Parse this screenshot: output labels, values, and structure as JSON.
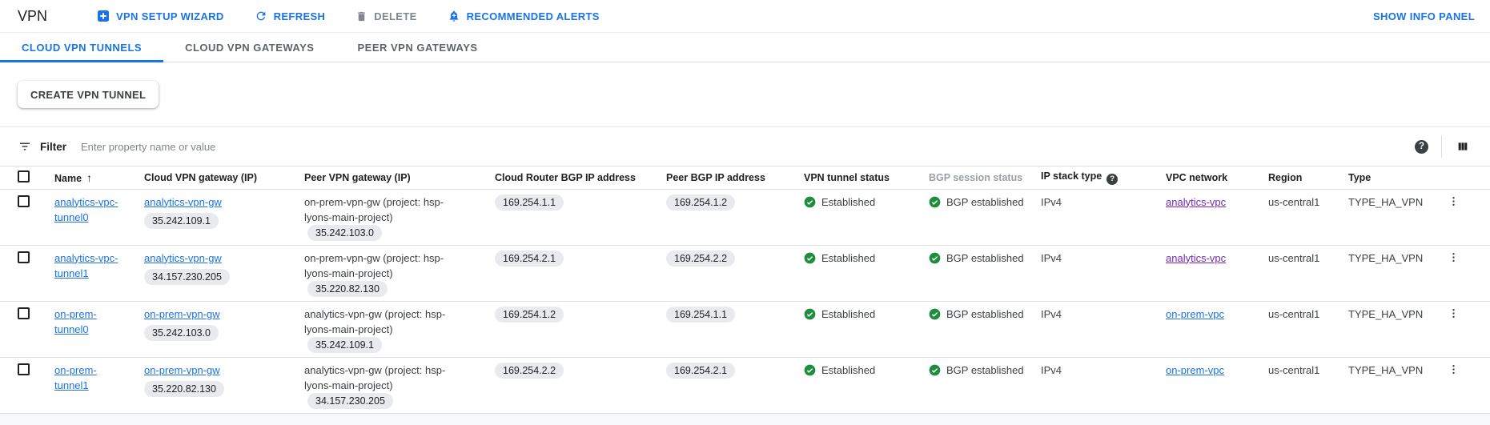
{
  "header": {
    "title": "VPN",
    "actions": [
      {
        "id": "vpn-setup-wizard",
        "label": "VPN SETUP WIZARD"
      },
      {
        "id": "refresh",
        "label": "REFRESH"
      },
      {
        "id": "delete",
        "label": "DELETE",
        "disabled": true
      },
      {
        "id": "recommended-alerts",
        "label": "RECOMMENDED ALERTS"
      }
    ],
    "show_info_panel": "SHOW INFO PANEL"
  },
  "tabs": [
    {
      "label": "CLOUD VPN TUNNELS",
      "active": true
    },
    {
      "label": "CLOUD VPN GATEWAYS",
      "active": false
    },
    {
      "label": "PEER VPN GATEWAYS",
      "active": false
    }
  ],
  "create_button": "CREATE VPN TUNNEL",
  "filter": {
    "label": "Filter",
    "placeholder": "Enter property name or value"
  },
  "colors": {
    "accent_blue": "#1a73e8",
    "visited_purple": "#7627bb",
    "status_green": "#1e8e3e",
    "chip_gray": "#e8eaed"
  },
  "table": {
    "columns": [
      {
        "id": "name",
        "label": "Name",
        "sort": "asc"
      },
      {
        "id": "cloud_gw",
        "label": "Cloud VPN gateway (IP)"
      },
      {
        "id": "peer_gw",
        "label": "Peer VPN gateway (IP)"
      },
      {
        "id": "router_bgp_ip",
        "label": "Cloud Router BGP IP address"
      },
      {
        "id": "peer_bgp_ip",
        "label": "Peer BGP IP address"
      },
      {
        "id": "tunnel_status",
        "label": "VPN tunnel status"
      },
      {
        "id": "bgp_status",
        "label": "BGP session status",
        "muted": true
      },
      {
        "id": "ip_stack",
        "label": "IP stack type",
        "help": true
      },
      {
        "id": "vpc",
        "label": "VPC network"
      },
      {
        "id": "region",
        "label": "Region"
      },
      {
        "id": "type",
        "label": "Type"
      }
    ],
    "rows": [
      {
        "name": "analytics-vpc-tunnel0",
        "cloud_gw": "analytics-vpn-gw",
        "cloud_gw_ip": "35.242.109.1",
        "peer_gw": "on-prem-vpn-gw (project: hsp-lyons-main-project)",
        "peer_gw_ip": "35.242.103.0",
        "router_bgp_ip": "169.254.1.1",
        "peer_bgp_ip": "169.254.1.2",
        "tunnel_status": "Established",
        "bgp_status": "BGP established",
        "ip_stack": "IPv4",
        "vpc": "analytics-vpc",
        "vpc_visited": true,
        "region": "us-central1",
        "type": "TYPE_HA_VPN"
      },
      {
        "name": "analytics-vpc-tunnel1",
        "cloud_gw": "analytics-vpn-gw",
        "cloud_gw_ip": "34.157.230.205",
        "peer_gw": "on-prem-vpn-gw (project: hsp-lyons-main-project)",
        "peer_gw_ip": "35.220.82.130",
        "router_bgp_ip": "169.254.2.1",
        "peer_bgp_ip": "169.254.2.2",
        "tunnel_status": "Established",
        "bgp_status": "BGP established",
        "ip_stack": "IPv4",
        "vpc": "analytics-vpc",
        "vpc_visited": true,
        "region": "us-central1",
        "type": "TYPE_HA_VPN"
      },
      {
        "name": "on-prem-tunnel0",
        "cloud_gw": "on-prem-vpn-gw",
        "cloud_gw_ip": "35.242.103.0",
        "peer_gw": "analytics-vpn-gw (project: hsp-lyons-main-project)",
        "peer_gw_ip": "35.242.109.1",
        "router_bgp_ip": "169.254.1.2",
        "peer_bgp_ip": "169.254.1.1",
        "tunnel_status": "Established",
        "bgp_status": "BGP established",
        "ip_stack": "IPv4",
        "vpc": "on-prem-vpc",
        "vpc_visited": false,
        "region": "us-central1",
        "type": "TYPE_HA_VPN"
      },
      {
        "name": "on-prem-tunnel1",
        "cloud_gw": "on-prem-vpn-gw",
        "cloud_gw_ip": "35.220.82.130",
        "peer_gw": "analytics-vpn-gw (project: hsp-lyons-main-project)",
        "peer_gw_ip": "34.157.230.205",
        "router_bgp_ip": "169.254.2.2",
        "peer_bgp_ip": "169.254.2.1",
        "tunnel_status": "Established",
        "bgp_status": "BGP established",
        "ip_stack": "IPv4",
        "vpc": "on-prem-vpc",
        "vpc_visited": false,
        "region": "us-central1",
        "type": "TYPE_HA_VPN"
      }
    ]
  }
}
